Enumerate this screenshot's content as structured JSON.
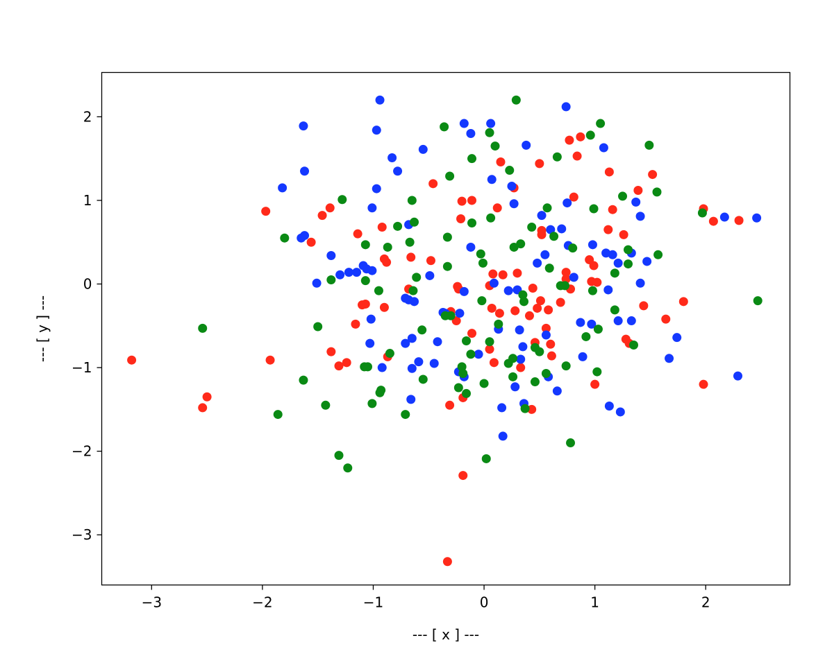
{
  "chart_data": {
    "type": "scatter",
    "title": "",
    "xlabel": "--- [ x ] ---",
    "ylabel": "--- [ y ] ---",
    "xlim": [
      -3.45,
      2.76
    ],
    "ylim": [
      -3.6,
      2.53
    ],
    "xticks": [
      -3,
      -2,
      -1,
      0,
      1,
      2
    ],
    "yticks": [
      -3,
      -2,
      -1,
      0,
      1,
      2
    ],
    "xtick_labels": [
      "−3",
      "−2",
      "−1",
      "0",
      "1",
      "2"
    ],
    "ytick_labels": [
      "−3",
      "−2",
      "−1",
      "0",
      "1",
      "2"
    ],
    "grid": false,
    "series": [
      {
        "color": "#ff2a1a",
        "points": [
          [
            -3.18,
            -0.91
          ],
          [
            -2.5,
            -1.35
          ],
          [
            -2.54,
            -1.48
          ],
          [
            -1.97,
            0.87
          ],
          [
            -1.93,
            -0.91
          ],
          [
            -1.56,
            0.5
          ],
          [
            -1.46,
            0.82
          ],
          [
            -1.39,
            0.91
          ],
          [
            -1.38,
            -0.81
          ],
          [
            -1.31,
            -0.98
          ],
          [
            -1.24,
            -0.94
          ],
          [
            -1.16,
            -0.48
          ],
          [
            -1.14,
            0.6
          ],
          [
            -1.1,
            -0.25
          ],
          [
            -1.07,
            -0.24
          ],
          [
            -0.92,
            0.68
          ],
          [
            -0.9,
            0.3
          ],
          [
            -0.88,
            0.26
          ],
          [
            -0.9,
            -0.28
          ],
          [
            -0.87,
            -0.87
          ],
          [
            -0.66,
            0.32
          ],
          [
            -0.68,
            -0.06
          ],
          [
            -0.48,
            0.28
          ],
          [
            -0.46,
            1.2
          ],
          [
            -0.3,
            -0.33
          ],
          [
            -0.31,
            -1.45
          ],
          [
            -0.25,
            -0.44
          ],
          [
            -0.24,
            -0.03
          ],
          [
            -0.23,
            -0.06
          ],
          [
            -0.21,
            0.78
          ],
          [
            -0.2,
            0.99
          ],
          [
            -0.11,
            1.0
          ],
          [
            -0.19,
            -1.36
          ],
          [
            -0.19,
            -2.29
          ],
          [
            -0.33,
            -3.32
          ],
          [
            -0.11,
            -0.59
          ],
          [
            0.05,
            -0.02
          ],
          [
            0.05,
            -0.78
          ],
          [
            0.08,
            0.12
          ],
          [
            0.07,
            -0.29
          ],
          [
            0.09,
            -0.94
          ],
          [
            0.12,
            0.91
          ],
          [
            0.14,
            -0.35
          ],
          [
            0.15,
            1.46
          ],
          [
            0.17,
            0.11
          ],
          [
            0.27,
            1.15
          ],
          [
            0.28,
            -0.32
          ],
          [
            0.3,
            0.13
          ],
          [
            0.33,
            -1.0
          ],
          [
            0.41,
            -0.38
          ],
          [
            0.43,
            -1.5
          ],
          [
            0.44,
            -0.05
          ],
          [
            0.46,
            -0.7
          ],
          [
            0.48,
            -0.29
          ],
          [
            0.5,
            1.44
          ],
          [
            0.51,
            -0.2
          ],
          [
            0.52,
            0.59
          ],
          [
            0.52,
            0.64
          ],
          [
            0.56,
            -0.53
          ],
          [
            0.58,
            -0.31
          ],
          [
            0.6,
            -0.72
          ],
          [
            0.61,
            -0.86
          ],
          [
            0.69,
            -0.22
          ],
          [
            0.74,
            0.14
          ],
          [
            0.74,
            0.06
          ],
          [
            0.77,
            1.72
          ],
          [
            0.78,
            -0.06
          ],
          [
            0.81,
            1.04
          ],
          [
            0.84,
            1.53
          ],
          [
            0.87,
            1.76
          ],
          [
            0.95,
            0.29
          ],
          [
            0.97,
            0.03
          ],
          [
            0.99,
            0.22
          ],
          [
            1.0,
            -1.2
          ],
          [
            1.02,
            0.02
          ],
          [
            1.12,
            0.65
          ],
          [
            1.13,
            1.34
          ],
          [
            1.16,
            0.89
          ],
          [
            1.26,
            0.59
          ],
          [
            1.28,
            -0.66
          ],
          [
            1.31,
            -0.71
          ],
          [
            1.39,
            1.12
          ],
          [
            1.44,
            -0.26
          ],
          [
            1.52,
            1.31
          ],
          [
            1.64,
            -0.42
          ],
          [
            1.8,
            -0.21
          ],
          [
            1.98,
            0.9
          ],
          [
            1.98,
            -1.2
          ],
          [
            2.07,
            0.75
          ],
          [
            2.3,
            0.76
          ]
        ]
      },
      {
        "color": "#1438ff",
        "points": [
          [
            -1.82,
            1.15
          ],
          [
            -1.65,
            0.55
          ],
          [
            -1.62,
            0.58
          ],
          [
            -1.63,
            1.89
          ],
          [
            -1.62,
            1.35
          ],
          [
            -1.51,
            0.01
          ],
          [
            -1.38,
            0.34
          ],
          [
            -1.3,
            0.11
          ],
          [
            -1.22,
            0.14
          ],
          [
            -1.15,
            0.14
          ],
          [
            -1.09,
            0.22
          ],
          [
            -1.06,
            0.18
          ],
          [
            -1.01,
            0.16
          ],
          [
            -1.01,
            0.91
          ],
          [
            -1.02,
            -0.42
          ],
          [
            -1.03,
            -0.71
          ],
          [
            -0.97,
            1.84
          ],
          [
            -0.97,
            1.14
          ],
          [
            -0.94,
            2.2
          ],
          [
            -0.92,
            -1.0
          ],
          [
            -0.83,
            1.51
          ],
          [
            -0.78,
            1.35
          ],
          [
            -0.71,
            -0.71
          ],
          [
            -0.71,
            -0.17
          ],
          [
            -0.68,
            -0.19
          ],
          [
            -0.68,
            0.71
          ],
          [
            -0.66,
            -1.38
          ],
          [
            -0.65,
            -1.01
          ],
          [
            -0.65,
            -0.65
          ],
          [
            -0.63,
            -0.21
          ],
          [
            -0.59,
            -0.93
          ],
          [
            -0.55,
            1.61
          ],
          [
            -0.49,
            0.1
          ],
          [
            -0.45,
            -0.95
          ],
          [
            -0.42,
            -0.69
          ],
          [
            -0.37,
            -0.34
          ],
          [
            -0.35,
            -0.35
          ],
          [
            -0.23,
            -1.05
          ],
          [
            -0.22,
            -0.35
          ],
          [
            -0.18,
            -0.09
          ],
          [
            -0.18,
            1.92
          ],
          [
            -0.18,
            -1.11
          ],
          [
            -0.12,
            0.44
          ],
          [
            -0.12,
            1.8
          ],
          [
            -0.05,
            -0.84
          ],
          [
            0.06,
            1.92
          ],
          [
            0.07,
            1.25
          ],
          [
            0.09,
            0.01
          ],
          [
            0.13,
            -0.54
          ],
          [
            0.16,
            -1.48
          ],
          [
            0.17,
            -1.82
          ],
          [
            0.22,
            -0.08
          ],
          [
            0.25,
            1.17
          ],
          [
            0.27,
            0.96
          ],
          [
            0.28,
            -1.23
          ],
          [
            0.3,
            -0.07
          ],
          [
            0.32,
            -0.55
          ],
          [
            0.33,
            -0.9
          ],
          [
            0.35,
            -0.75
          ],
          [
            0.36,
            -1.43
          ],
          [
            0.38,
            1.66
          ],
          [
            0.48,
            0.25
          ],
          [
            0.52,
            0.82
          ],
          [
            0.55,
            0.35
          ],
          [
            0.56,
            -0.61
          ],
          [
            0.58,
            -1.11
          ],
          [
            0.6,
            0.65
          ],
          [
            0.66,
            -1.28
          ],
          [
            0.7,
            0.66
          ],
          [
            0.74,
            2.12
          ],
          [
            0.75,
            0.97
          ],
          [
            0.76,
            0.46
          ],
          [
            0.81,
            0.08
          ],
          [
            0.87,
            -0.46
          ],
          [
            0.89,
            -0.87
          ],
          [
            0.97,
            -0.48
          ],
          [
            0.98,
            0.47
          ],
          [
            1.08,
            1.63
          ],
          [
            1.1,
            0.37
          ],
          [
            1.12,
            -0.07
          ],
          [
            1.13,
            -1.46
          ],
          [
            1.16,
            0.35
          ],
          [
            1.21,
            -0.44
          ],
          [
            1.21,
            0.25
          ],
          [
            1.23,
            -1.53
          ],
          [
            1.33,
            0.37
          ],
          [
            1.33,
            -0.44
          ],
          [
            1.37,
            0.98
          ],
          [
            1.41,
            0.81
          ],
          [
            1.41,
            0.01
          ],
          [
            1.47,
            0.27
          ],
          [
            1.67,
            -0.89
          ],
          [
            1.74,
            -0.64
          ],
          [
            2.17,
            0.8
          ],
          [
            2.29,
            -1.1
          ],
          [
            2.46,
            0.79
          ]
        ]
      },
      {
        "color": "#0a8a14",
        "points": [
          [
            -2.54,
            -0.53
          ],
          [
            -1.86,
            -1.56
          ],
          [
            -1.8,
            0.55
          ],
          [
            -1.63,
            -1.15
          ],
          [
            -1.5,
            -0.51
          ],
          [
            -1.43,
            -1.45
          ],
          [
            -1.38,
            0.05
          ],
          [
            -1.31,
            -2.05
          ],
          [
            -1.28,
            1.01
          ],
          [
            -1.23,
            -2.2
          ],
          [
            -1.08,
            -0.99
          ],
          [
            -1.07,
            0.47
          ],
          [
            -1.07,
            0.04
          ],
          [
            -1.05,
            -0.99
          ],
          [
            -1.01,
            -1.43
          ],
          [
            -0.95,
            -0.08
          ],
          [
            -0.94,
            -1.3
          ],
          [
            -0.93,
            -1.27
          ],
          [
            -0.87,
            0.44
          ],
          [
            -0.85,
            -0.83
          ],
          [
            -0.78,
            0.69
          ],
          [
            -0.71,
            -1.56
          ],
          [
            -0.67,
            0.5
          ],
          [
            -0.65,
            1.0
          ],
          [
            -0.64,
            -0.08
          ],
          [
            -0.63,
            0.74
          ],
          [
            -0.61,
            0.08
          ],
          [
            -0.56,
            -0.55
          ],
          [
            -0.55,
            -1.14
          ],
          [
            -0.36,
            1.88
          ],
          [
            -0.35,
            -0.38
          ],
          [
            -0.33,
            0.21
          ],
          [
            -0.33,
            0.56
          ],
          [
            -0.31,
            1.29
          ],
          [
            -0.3,
            -0.38
          ],
          [
            -0.23,
            -1.24
          ],
          [
            -0.2,
            -0.99
          ],
          [
            -0.19,
            -1.07
          ],
          [
            -0.16,
            -0.68
          ],
          [
            -0.16,
            -1.31
          ],
          [
            -0.11,
            0.73
          ],
          [
            -0.11,
            1.5
          ],
          [
            -0.03,
            0.36
          ],
          [
            -0.01,
            0.25
          ],
          [
            -0.02,
            -0.2
          ],
          [
            0.0,
            -1.19
          ],
          [
            0.02,
            -2.09
          ],
          [
            0.05,
            1.81
          ],
          [
            0.06,
            0.79
          ],
          [
            0.1,
            1.65
          ],
          [
            0.13,
            -0.48
          ],
          [
            0.22,
            -0.95
          ],
          [
            0.23,
            1.36
          ],
          [
            0.26,
            -0.89
          ],
          [
            0.26,
            -1.11
          ],
          [
            0.27,
            0.44
          ],
          [
            0.29,
            2.2
          ],
          [
            0.33,
            0.48
          ],
          [
            0.35,
            -0.13
          ],
          [
            0.36,
            -0.21
          ],
          [
            0.37,
            -1.49
          ],
          [
            0.43,
            0.68
          ],
          [
            0.46,
            -0.76
          ],
          [
            0.46,
            -1.17
          ],
          [
            0.5,
            -0.81
          ],
          [
            0.56,
            -1.07
          ],
          [
            0.57,
            0.91
          ],
          [
            0.59,
            0.19
          ],
          [
            0.63,
            0.57
          ],
          [
            0.66,
            1.52
          ],
          [
            0.69,
            -0.02
          ],
          [
            0.73,
            -0.02
          ],
          [
            0.74,
            -0.98
          ],
          [
            0.78,
            -1.9
          ],
          [
            0.8,
            0.43
          ],
          [
            0.92,
            -0.63
          ],
          [
            0.96,
            1.78
          ],
          [
            0.98,
            -0.08
          ],
          [
            0.99,
            0.9
          ],
          [
            1.02,
            -1.05
          ],
          [
            1.03,
            -0.54
          ],
          [
            1.05,
            1.92
          ],
          [
            1.18,
            -0.31
          ],
          [
            1.18,
            0.13
          ],
          [
            1.25,
            1.05
          ],
          [
            1.3,
            0.24
          ],
          [
            1.3,
            0.41
          ],
          [
            1.35,
            -0.73
          ],
          [
            1.49,
            1.66
          ],
          [
            1.56,
            1.1
          ],
          [
            1.57,
            0.35
          ],
          [
            1.97,
            0.85
          ],
          [
            2.47,
            -0.2
          ],
          [
            0.05,
            -0.69
          ],
          [
            -0.12,
            -0.84
          ]
        ]
      }
    ]
  }
}
